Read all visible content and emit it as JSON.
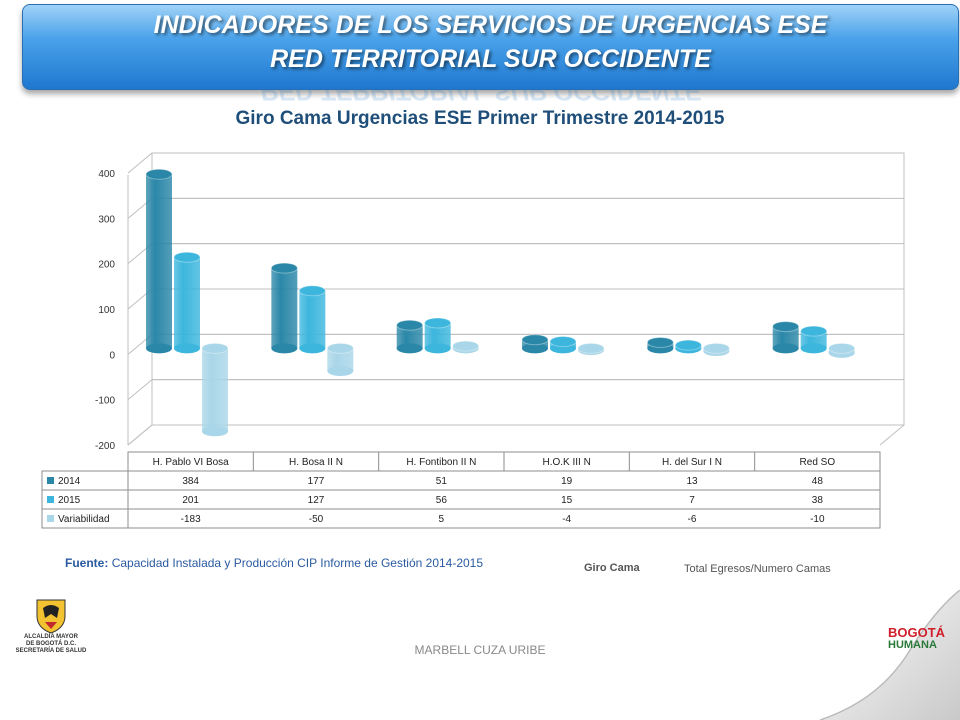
{
  "header": {
    "line1": "INDICADORES DE LOS SERVICIOS DE URGENCIAS ESE",
    "line2": "RED TERRITORIAL SUR OCCIDENTE"
  },
  "colors": {
    "s2014": "#2a87a8",
    "s2015": "#3cb6dd",
    "variabilidad": "#a9d6e8",
    "banner": "#2d8ce0"
  },
  "chart_data": {
    "type": "bar",
    "title": "Giro Cama Urgencias ESE Primer Trimestre 2014-2015",
    "categories": [
      "H. Pablo VI Bosa",
      "H. Bosa II N",
      "H. Fontibon II N",
      "H.O.K  III N",
      "H. del Sur I N",
      "Red SO"
    ],
    "series": [
      {
        "name": "2014",
        "values": [
          384,
          177,
          51,
          19,
          13,
          48
        ]
      },
      {
        "name": "2015",
        "values": [
          201,
          127,
          56,
          15,
          7,
          38
        ]
      },
      {
        "name": "Variabilidad",
        "values": [
          -183,
          -50,
          5,
          -4,
          -6,
          -10
        ]
      }
    ],
    "ylim": [
      -200,
      400
    ],
    "yticks": [
      -200,
      -100,
      0,
      100,
      200,
      300,
      400
    ],
    "xlabel": "",
    "ylabel": "",
    "grid": true,
    "data_table": true
  },
  "source": {
    "label": "Fuente:",
    "text": "Capacidad Instalada y Producción CIP Informe de Gestión 2014-2015"
  },
  "formula": {
    "label": "Giro Cama",
    "value": "Total Egresos/Numero Camas"
  },
  "footer": {
    "author": "MARBELL CUZA URIBE"
  },
  "logos": {
    "left_text": [
      "ALCALDÍA MAYOR",
      "DE BOGOTÁ D.C.",
      "SECRETARÍA DE SALUD"
    ],
    "right_text": [
      "BOGOTÁ",
      "HUMANA"
    ]
  }
}
